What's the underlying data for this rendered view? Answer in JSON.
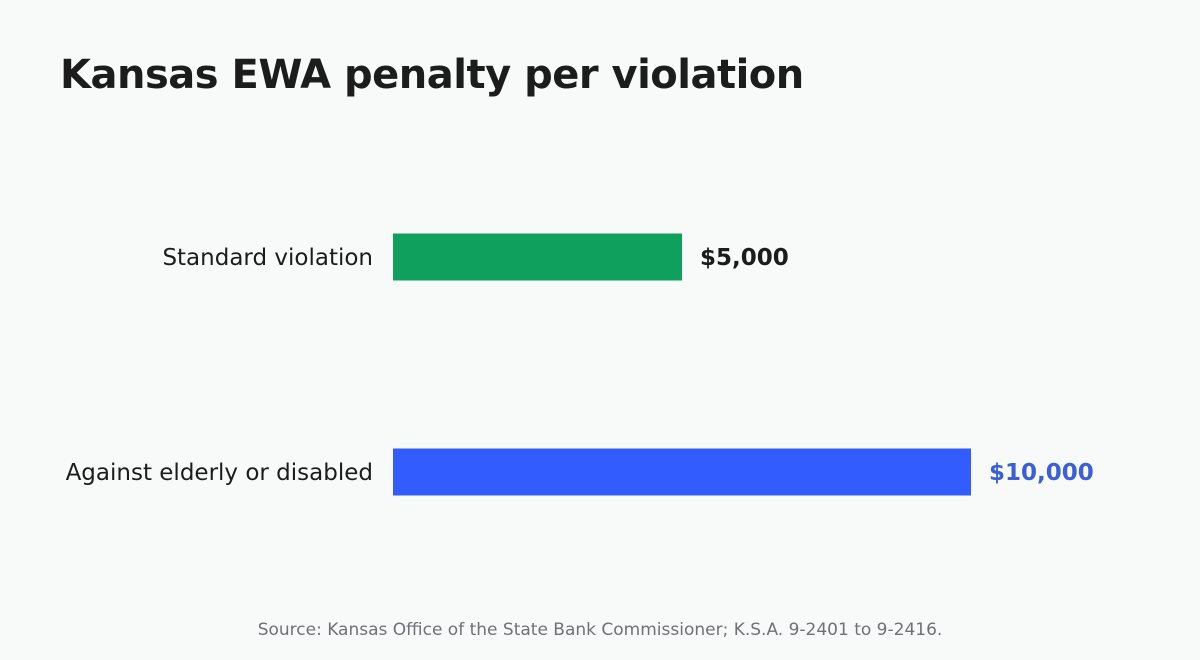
{
  "chart_data": {
    "type": "bar",
    "orientation": "horizontal",
    "title": "Kansas EWA penalty per violation",
    "categories": [
      "Standard violation",
      "Against elderly or disabled"
    ],
    "values": [
      5000,
      10000
    ],
    "value_labels": [
      "$5,000",
      "$10,000"
    ],
    "bar_colors": [
      "#10a05d",
      "#335cff"
    ],
    "value_label_colors": [
      "#1c1c1c",
      "#3a5fd9"
    ],
    "xlim": [
      0,
      10000
    ],
    "grid": false,
    "legend": "none",
    "xlabel": "",
    "ylabel": ""
  },
  "footer": {
    "source": "Source: Kansas Office of the State Bank Commissioner; K.S.A. 9-2401 to 9-2416."
  }
}
